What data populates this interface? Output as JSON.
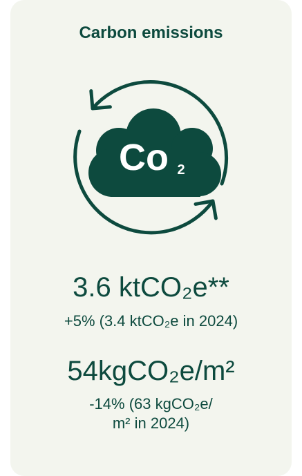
{
  "card": {
    "title": "Carbon emissions",
    "icon": {
      "label": "Co",
      "subscript": "2"
    },
    "metrics": [
      {
        "value": "3.6 ktCO₂e**",
        "change": [
          "+5% (3.4 ktCO₂e in 2024)"
        ]
      },
      {
        "value": "54kgCO₂e/m²",
        "change": [
          "-14% (63 kgCO₂e/",
          "m² in 2024)"
        ]
      }
    ]
  }
}
